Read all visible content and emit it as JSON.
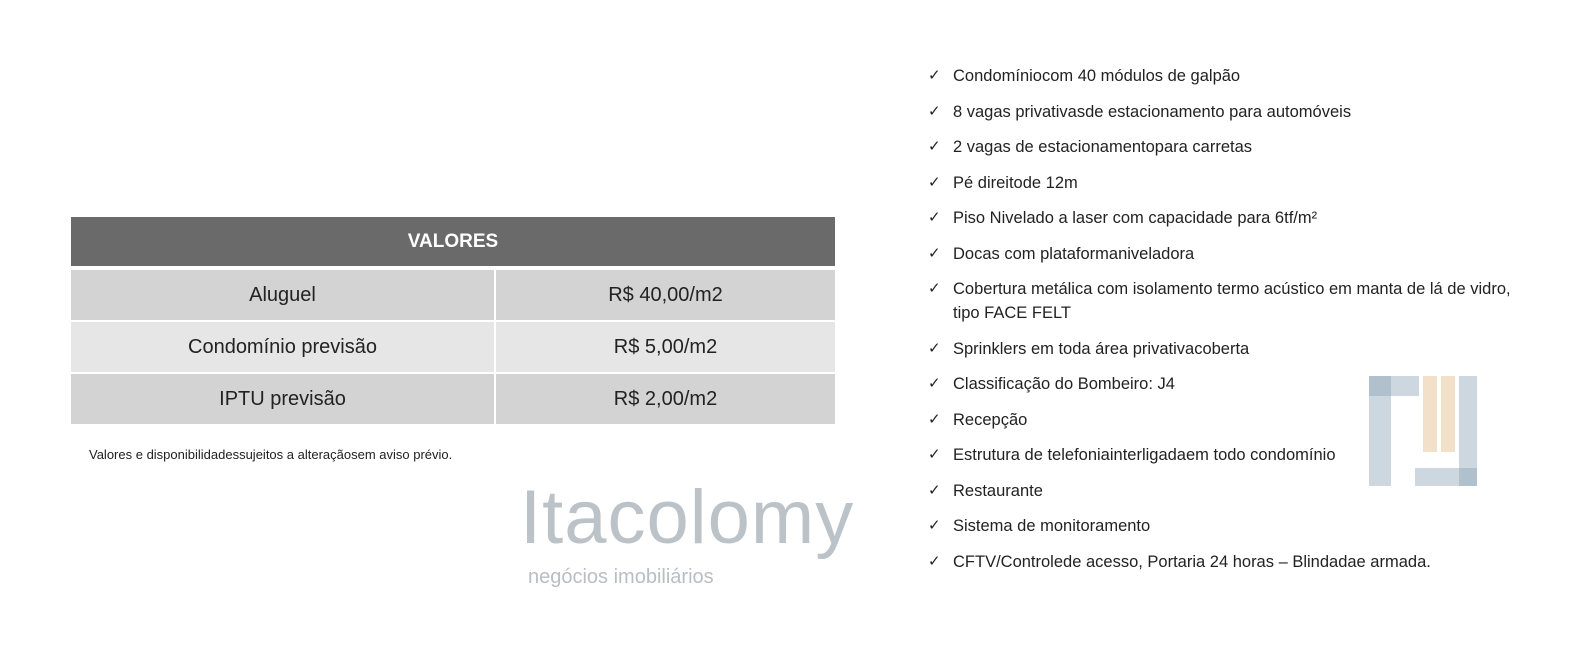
{
  "table": {
    "header": "VALORES",
    "rows": [
      {
        "label": "Aluguel",
        "value": "R$ 40,00/m2"
      },
      {
        "label": "Condomínio previsão",
        "value": "R$ 5,00/m2"
      },
      {
        "label": "IPTU previsão",
        "value": "R$ 2,00/m2"
      }
    ]
  },
  "note": "Valores e disponibilidadessujeitos a alteraçãosem aviso prévio.",
  "features": {
    "icon": "check-icon",
    "items": [
      "Condomíniocom 40 módulos de galpão",
      "8 vagas privativasde estacionamento para automóveis",
      "2 vagas de estacionamentopara carretas",
      "Pé direitode 12m",
      "Piso Nivelado a laser com capacidade para 6tf/m²",
      "Docas com plataformaniveladora",
      "Cobertura metálica com isolamento termo acústico em manta de lá de vidro, tipo FACE FELT",
      "Sprinklers em toda área privativacoberta",
      "Classificação do Bombeiro: J4",
      "Recepção",
      "Estrutura de telefoniainterligadaem todo condomínio",
      "Restaurante",
      "Sistema de monitoramento",
      "CFTV/Controlede acesso, Portaria 24 horas – Blindadae armada."
    ]
  },
  "watermark": {
    "brand": "Itacolomy",
    "tagline": "negócios imobiliários",
    "colors": {
      "blue": "#8fa6b8",
      "orange": "#e8c89a"
    }
  }
}
